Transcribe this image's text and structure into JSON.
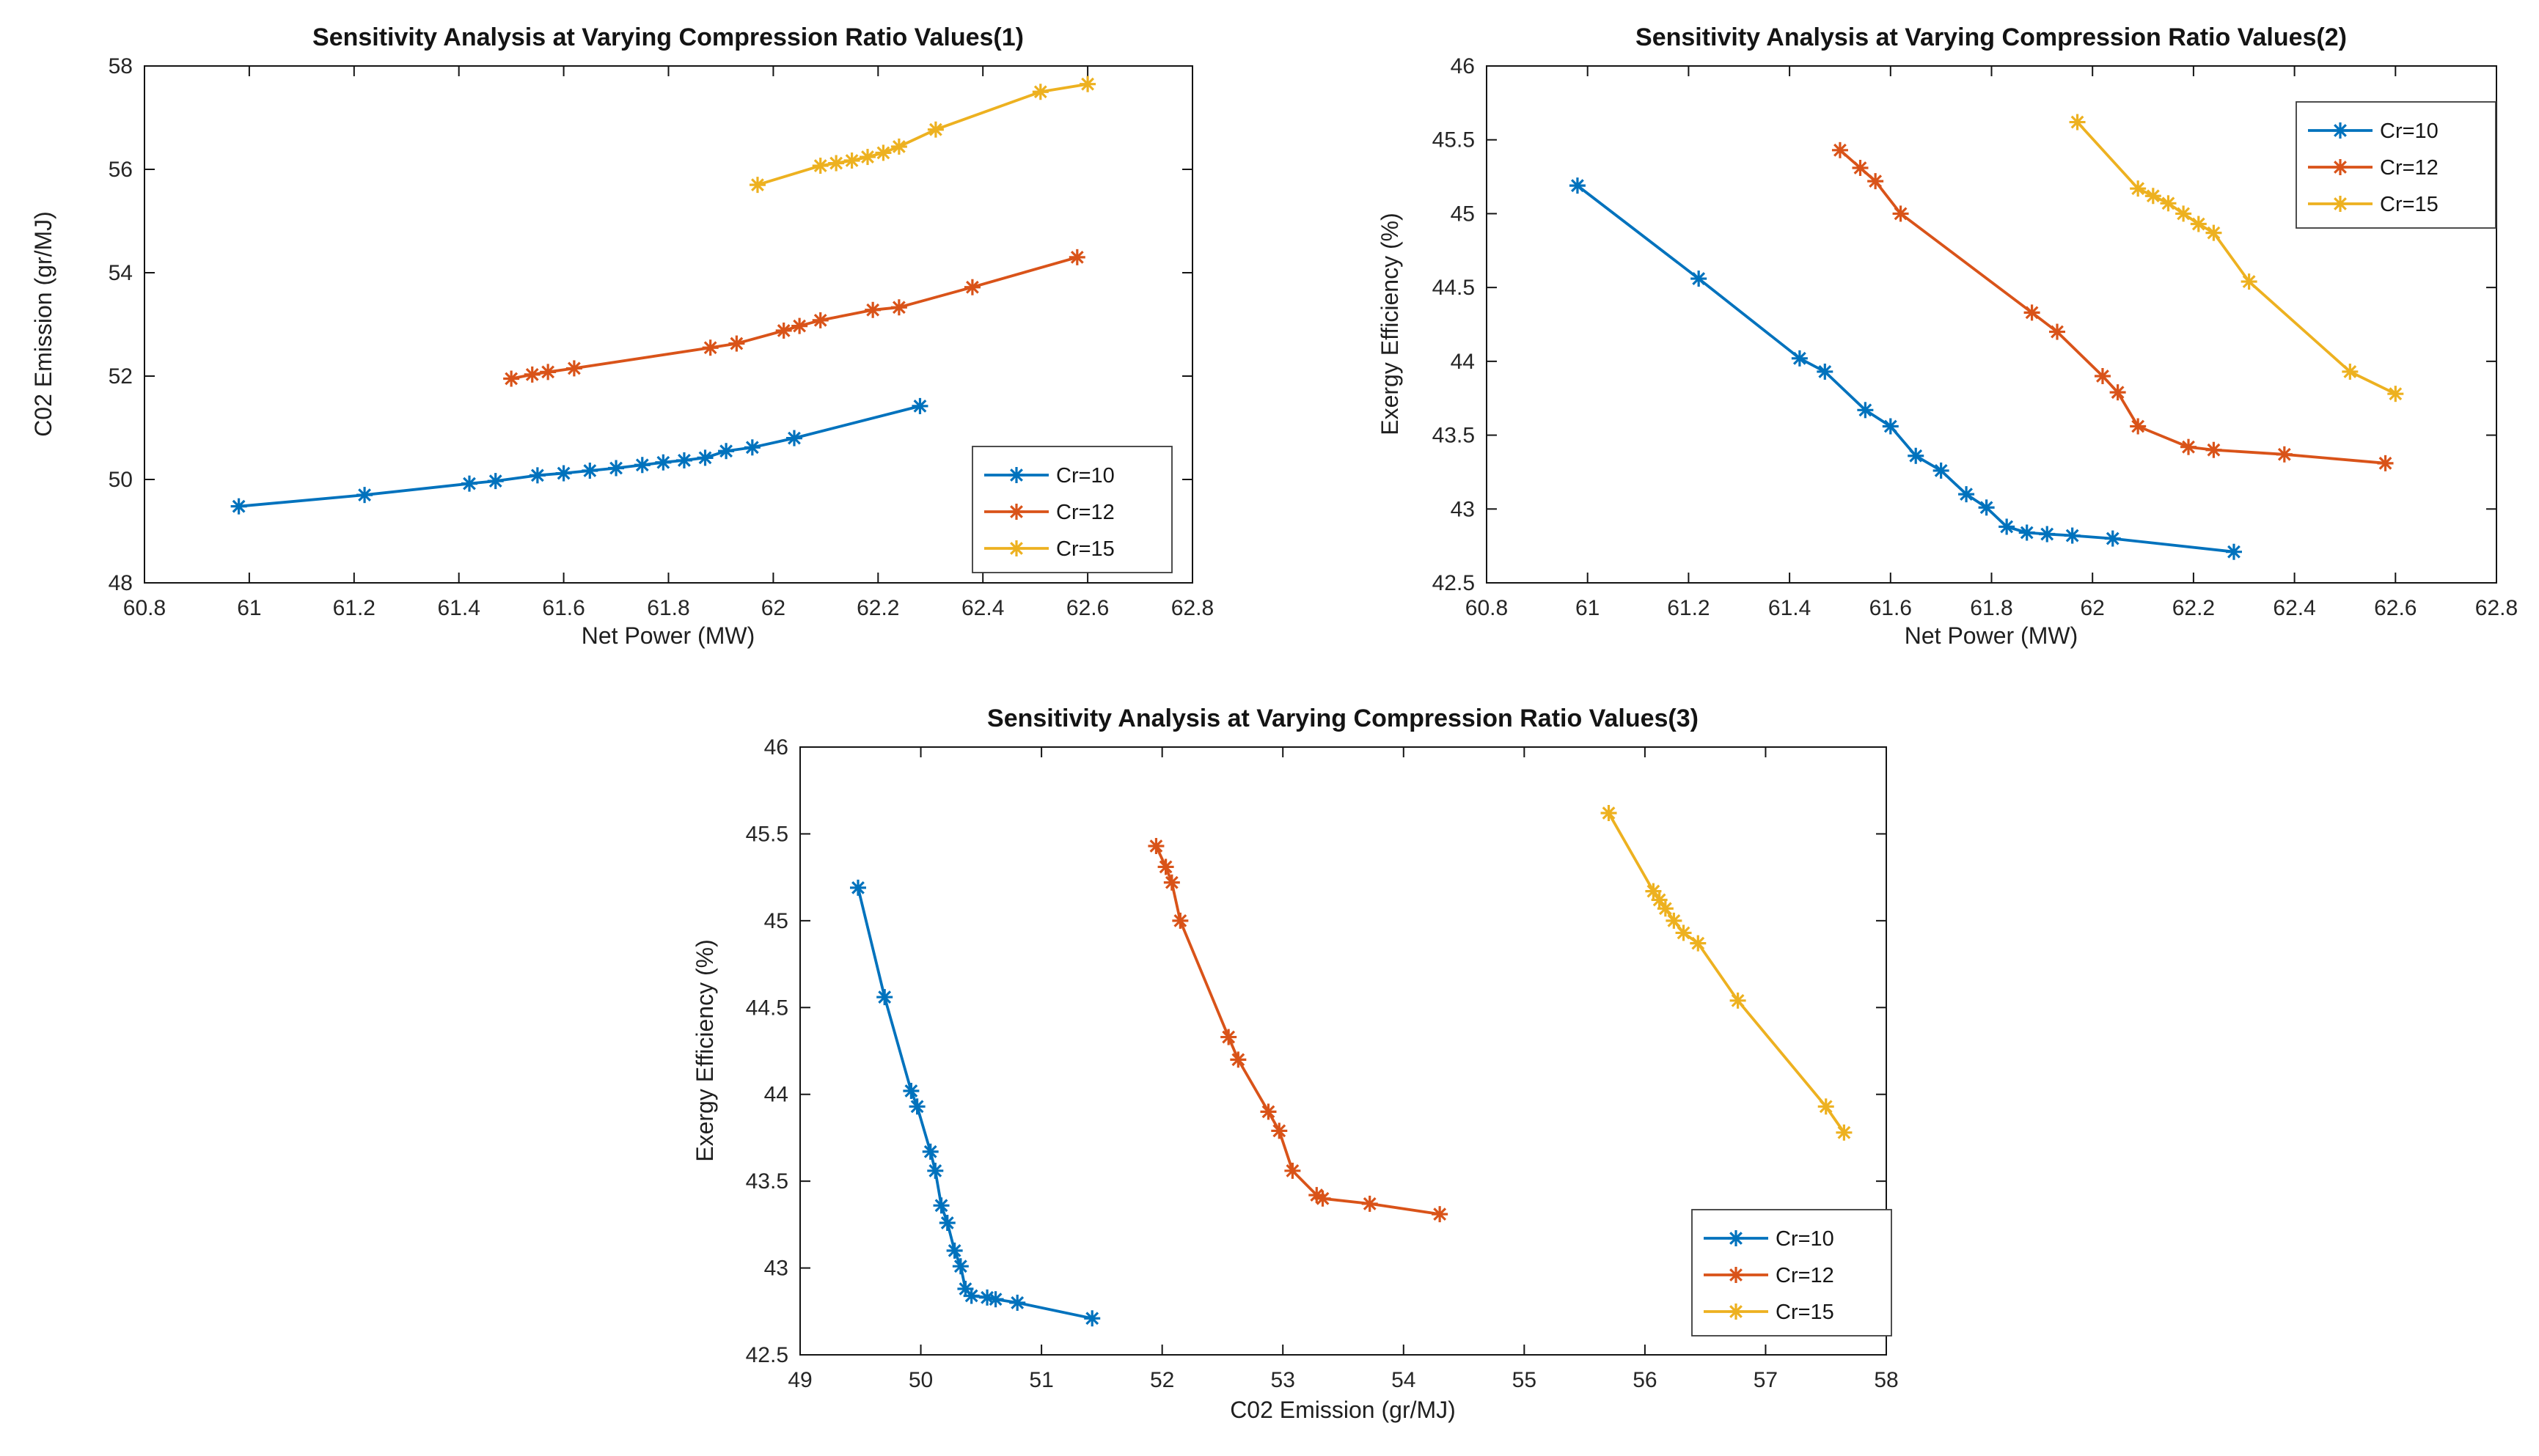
{
  "figure": {
    "background": "#ffffff",
    "axis_color": "#151515",
    "tick_label_color": "#262626"
  },
  "chart_data": [
    {
      "type": "line",
      "title": "Sensitivity Analysis at Varying Compression Ratio Values(1)",
      "xlabel": "Net Power (MW)",
      "ylabel": "C02 Emission (gr/MJ)",
      "xlim": [
        60.8,
        62.8
      ],
      "ylim": [
        48,
        58
      ],
      "xtick_labels": [
        "60.8",
        "61",
        "61.2",
        "61.4",
        "61.6",
        "61.8",
        "62",
        "62.2",
        "62.4",
        "62.6",
        "62.8"
      ],
      "ytick_labels": [
        "48",
        "50",
        "52",
        "54",
        "56",
        "58"
      ],
      "x_key": "net_power",
      "y_key": "co2",
      "grid": false,
      "legend_position": "bottom-right"
    },
    {
      "type": "line",
      "title": "Sensitivity Analysis at Varying Compression Ratio Values(2)",
      "xlabel": "Net Power (MW)",
      "ylabel": "Exergy Efficiency (%)",
      "xlim": [
        60.8,
        62.8
      ],
      "ylim": [
        42.5,
        46
      ],
      "xtick_labels": [
        "60.8",
        "61",
        "61.2",
        "61.4",
        "61.6",
        "61.8",
        "62",
        "62.2",
        "62.4",
        "62.6",
        "62.8"
      ],
      "ytick_labels": [
        "42.5",
        "43",
        "43.5",
        "44",
        "44.5",
        "45",
        "45.5",
        "46"
      ],
      "x_key": "net_power",
      "y_key": "exergy",
      "grid": false,
      "legend_position": "top-right"
    },
    {
      "type": "line",
      "title": "Sensitivity Analysis at Varying Compression Ratio Values(3)",
      "xlabel": "C02 Emission (gr/MJ)",
      "ylabel": "Exergy Efficiency (%)",
      "xlim": [
        49,
        58
      ],
      "ylim": [
        42.5,
        46
      ],
      "xtick_labels": [
        "49",
        "50",
        "51",
        "52",
        "53",
        "54",
        "55",
        "56",
        "57",
        "58"
      ],
      "ytick_labels": [
        "42.5",
        "43",
        "43.5",
        "44",
        "44.5",
        "45",
        "45.5",
        "46"
      ],
      "x_key": "co2",
      "y_key": "exergy",
      "grid": false,
      "legend_position": "bottom-right"
    }
  ],
  "series": [
    {
      "name": "Cr=10",
      "color": "#0072BD",
      "marker": "asterisk",
      "net_power": [
        60.98,
        61.22,
        61.42,
        61.47,
        61.55,
        61.6,
        61.65,
        61.7,
        61.75,
        61.79,
        61.83,
        61.87,
        61.91,
        61.96,
        62.04,
        62.28
      ],
      "co2": [
        49.48,
        49.7,
        49.92,
        49.97,
        50.08,
        50.12,
        50.17,
        50.22,
        50.28,
        50.33,
        50.37,
        50.42,
        50.55,
        50.62,
        50.8,
        51.42
      ],
      "exergy": [
        45.19,
        44.56,
        44.02,
        43.93,
        43.67,
        43.56,
        43.36,
        43.26,
        43.1,
        43.01,
        42.88,
        42.84,
        42.83,
        42.82,
        42.8,
        42.71
      ]
    },
    {
      "name": "Cr=12",
      "color": "#D95319",
      "marker": "asterisk",
      "net_power": [
        61.5,
        61.54,
        61.57,
        61.62,
        61.88,
        61.93,
        62.02,
        62.05,
        62.09,
        62.19,
        62.24,
        62.38,
        62.58
      ],
      "co2": [
        51.95,
        52.03,
        52.08,
        52.15,
        52.55,
        52.63,
        52.88,
        52.97,
        53.08,
        53.28,
        53.33,
        53.72,
        54.3
      ],
      "exergy": [
        45.43,
        45.31,
        45.22,
        45.0,
        44.33,
        44.2,
        43.9,
        43.79,
        43.56,
        43.42,
        43.4,
        43.37,
        43.31
      ]
    },
    {
      "name": "Cr=15",
      "color": "#EDB120",
      "marker": "asterisk",
      "net_power": [
        61.97,
        62.09,
        62.12,
        62.15,
        62.18,
        62.21,
        62.24,
        62.31,
        62.51,
        62.6
      ],
      "co2": [
        55.7,
        56.07,
        56.12,
        56.17,
        56.24,
        56.32,
        56.44,
        56.77,
        57.5,
        57.65
      ],
      "exergy": [
        45.62,
        45.17,
        45.12,
        45.07,
        45.0,
        44.93,
        44.87,
        44.54,
        43.93,
        43.78
      ]
    }
  ]
}
